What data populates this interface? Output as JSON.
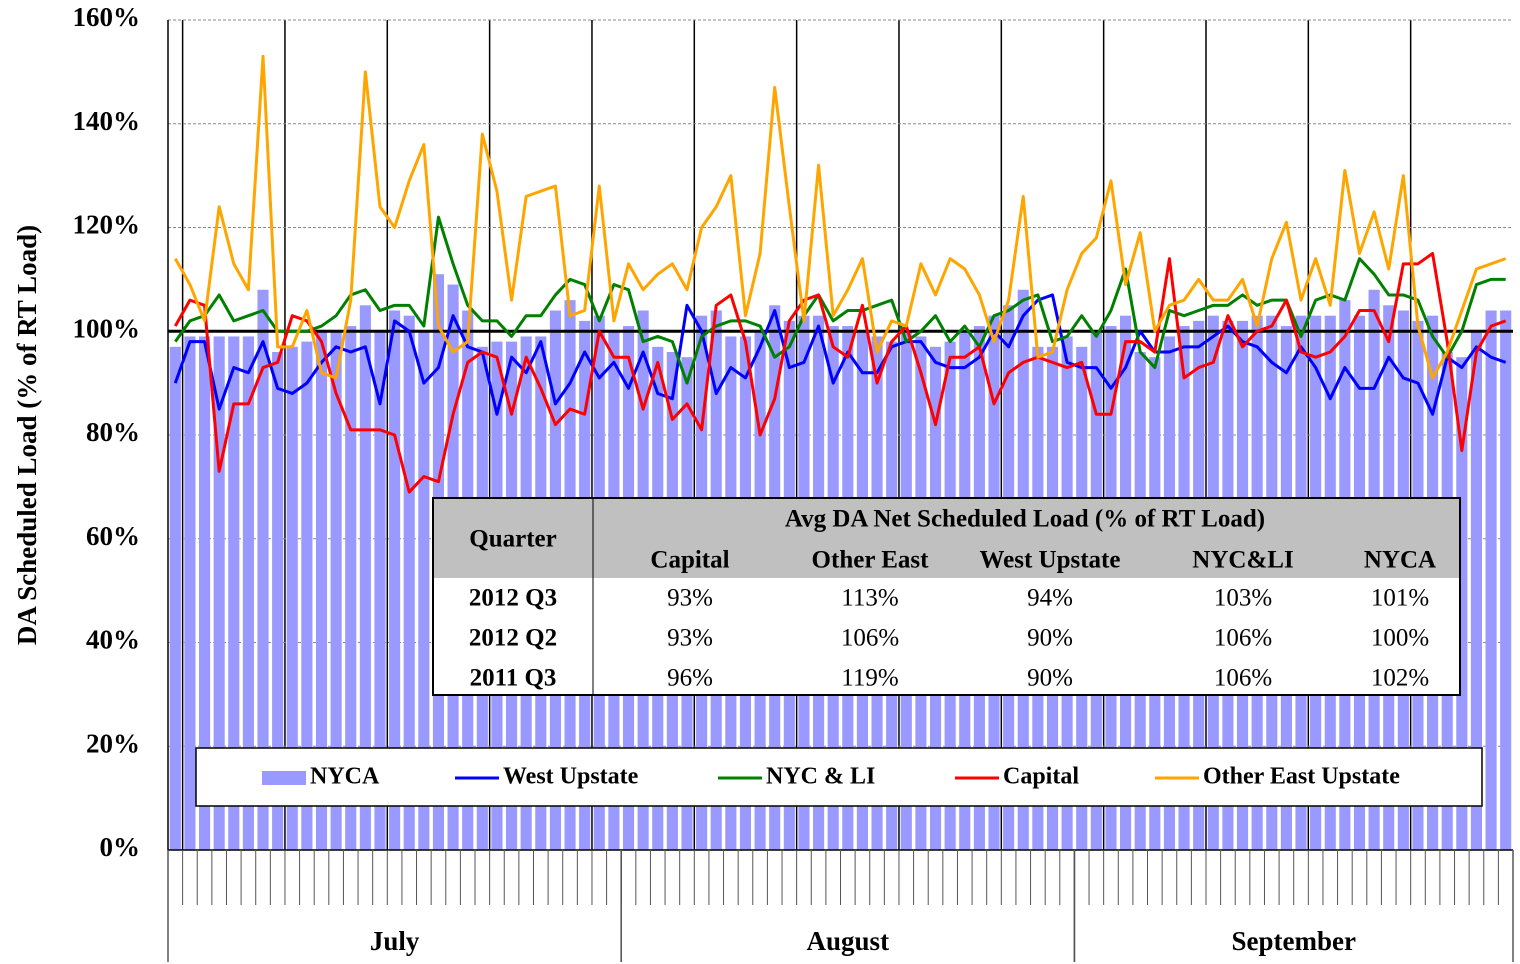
{
  "chart_data": {
    "type": "combo",
    "y_label": "DA Scheduled Load (% of RT Load)",
    "ylim": [
      0,
      160
    ],
    "yticks": [
      {
        "value": 0,
        "label": "0%"
      },
      {
        "value": 20,
        "label": "20%"
      },
      {
        "value": 40,
        "label": "40%"
      },
      {
        "value": 60,
        "label": "60%"
      },
      {
        "value": 80,
        "label": "80%"
      },
      {
        "value": 100,
        "label": "100%"
      },
      {
        "value": 120,
        "label": "120%"
      },
      {
        "value": 140,
        "label": "140%"
      },
      {
        "value": 160,
        "label": "160%"
      }
    ],
    "grid": true,
    "hline": 100,
    "x_groups": [
      {
        "label": "July",
        "count": 31
      },
      {
        "label": "August",
        "count": 31
      },
      {
        "label": "September",
        "count": 30
      }
    ],
    "categories": [
      null,
      null,
      null,
      null,
      null,
      null,
      null,
      null,
      null,
      null,
      null,
      null,
      null,
      null,
      null,
      null,
      null,
      null,
      null,
      null,
      null,
      null,
      null,
      null,
      null,
      null,
      null,
      null,
      null,
      null,
      null,
      null,
      null,
      null,
      null,
      null,
      null,
      null,
      null,
      null,
      null,
      null,
      null,
      null,
      null,
      null,
      null,
      null,
      null,
      null,
      null,
      null,
      null,
      null,
      null,
      null,
      null,
      null,
      null,
      null,
      null,
      null,
      null,
      null,
      null,
      null,
      null,
      null,
      null,
      null,
      null,
      null,
      null,
      null,
      null,
      null,
      null,
      null,
      null,
      null,
      null,
      null,
      null,
      null,
      null,
      null,
      null,
      null,
      null,
      null,
      null,
      null
    ],
    "series": [
      {
        "name": "NYCA",
        "kind": "bar",
        "color": "#9999ff",
        "values": [
          97,
          99,
          99,
          99,
          99,
          99,
          108,
          96,
          97,
          98,
          100,
          100,
          101,
          105,
          100,
          104,
          103,
          100,
          111,
          109,
          104,
          97,
          98,
          98,
          99,
          99,
          104,
          106,
          102,
          103,
          100,
          101,
          104,
          97,
          96,
          95,
          103,
          104,
          99,
          99,
          100,
          105,
          102,
          103,
          103,
          101,
          101,
          100,
          99,
          98,
          100,
          99,
          97,
          98,
          100,
          101,
          103,
          105,
          108,
          97,
          97,
          99,
          97,
          100,
          101,
          103,
          96,
          95,
          99,
          101,
          102,
          103,
          102,
          102,
          103,
          103,
          101,
          103,
          103,
          103,
          106,
          103,
          108,
          105,
          104,
          102,
          103,
          96,
          95,
          100,
          104,
          104
        ]
      },
      {
        "name": "West Upstate",
        "kind": "line",
        "color": "#0000ff",
        "values": [
          90,
          98,
          98,
          85,
          93,
          92,
          98,
          89,
          88,
          90,
          94,
          97,
          96,
          97,
          86,
          102,
          100,
          90,
          93,
          103,
          97,
          96,
          84,
          95,
          92,
          98,
          86,
          90,
          96,
          91,
          94,
          89,
          96,
          88,
          87,
          105,
          100,
          88,
          93,
          91,
          97,
          104,
          93,
          94,
          101,
          90,
          96,
          92,
          92,
          97,
          98,
          98,
          94,
          93,
          93,
          95,
          100,
          97,
          103,
          106,
          107,
          94,
          93,
          93,
          89,
          93,
          100,
          96,
          96,
          97,
          97,
          99,
          101,
          98,
          97,
          94,
          92,
          97,
          93,
          87,
          93,
          89,
          89,
          95,
          91,
          90,
          84,
          95,
          93,
          97,
          95,
          94
        ]
      },
      {
        "name": "NYC & LI",
        "kind": "line",
        "color": "#008000",
        "values": [
          98,
          102,
          103,
          107,
          102,
          103,
          104,
          100,
          100,
          100,
          101,
          103,
          107,
          108,
          104,
          105,
          105,
          101,
          122,
          113,
          105,
          102,
          102,
          99,
          103,
          103,
          107,
          110,
          109,
          102,
          109,
          108,
          98,
          99,
          98,
          90,
          99,
          101,
          102,
          102,
          101,
          95,
          97,
          103,
          107,
          102,
          104,
          104,
          105,
          106,
          98,
          100,
          103,
          98,
          101,
          97,
          103,
          104,
          106,
          107,
          98,
          99,
          103,
          99,
          104,
          112,
          96,
          93,
          104,
          103,
          104,
          105,
          105,
          107,
          105,
          106,
          106,
          99,
          106,
          107,
          106,
          114,
          111,
          107,
          107,
          106,
          99,
          95,
          100,
          109,
          110,
          110
        ]
      },
      {
        "name": "Capital",
        "kind": "line",
        "color": "#ff0000",
        "values": [
          101,
          106,
          105,
          73,
          86,
          86,
          93,
          94,
          103,
          102,
          98,
          88,
          81,
          81,
          81,
          80,
          69,
          72,
          71,
          84,
          94,
          96,
          95,
          84,
          95,
          89,
          82,
          85,
          84,
          100,
          95,
          95,
          85,
          94,
          83,
          86,
          81,
          105,
          107,
          98,
          80,
          87,
          102,
          106,
          107,
          97,
          95,
          105,
          90,
          98,
          101,
          92,
          82,
          95,
          95,
          97,
          86,
          92,
          94,
          95,
          94,
          93,
          94,
          84,
          84,
          98,
          98,
          96,
          114,
          91,
          93,
          94,
          103,
          97,
          100,
          101,
          106,
          96,
          95,
          96,
          99,
          104,
          104,
          98,
          113,
          113,
          115,
          98,
          77,
          96,
          101,
          102
        ]
      },
      {
        "name": "Other East Upstate",
        "kind": "line",
        "color": "#ffa500",
        "values": [
          114,
          109,
          102,
          124,
          113,
          108,
          153,
          97,
          97,
          104,
          92,
          91,
          106,
          150,
          124,
          120,
          129,
          136,
          101,
          96,
          98,
          138,
          127,
          106,
          126,
          127,
          128,
          103,
          104,
          128,
          102,
          113,
          108,
          111,
          113,
          108,
          120,
          124,
          130,
          103,
          115,
          147,
          124,
          102,
          132,
          103,
          108,
          114,
          96,
          102,
          101,
          113,
          107,
          114,
          112,
          107,
          98,
          106,
          126,
          95,
          96,
          108,
          115,
          118,
          129,
          109,
          119,
          100,
          105,
          106,
          110,
          106,
          106,
          110,
          101,
          114,
          121,
          106,
          114,
          105,
          131,
          115,
          123,
          112,
          130,
          101,
          91,
          96,
          104,
          112,
          113,
          114
        ]
      }
    ],
    "table": {
      "corner": "Quarter",
      "group_header": "Avg DA Net Scheduled Load (% of RT Load)",
      "columns": [
        "Capital",
        "Other East",
        "West Upstate",
        "NYC&LI",
        "NYCA"
      ],
      "rows": [
        {
          "label": "2012 Q3",
          "cells": [
            "93%",
            "113%",
            "94%",
            "103%",
            "101%"
          ]
        },
        {
          "label": "2012 Q2",
          "cells": [
            "93%",
            "106%",
            "90%",
            "106%",
            "100%"
          ]
        },
        {
          "label": "2011 Q3",
          "cells": [
            "96%",
            "119%",
            "90%",
            "106%",
            "102%"
          ]
        }
      ]
    }
  }
}
